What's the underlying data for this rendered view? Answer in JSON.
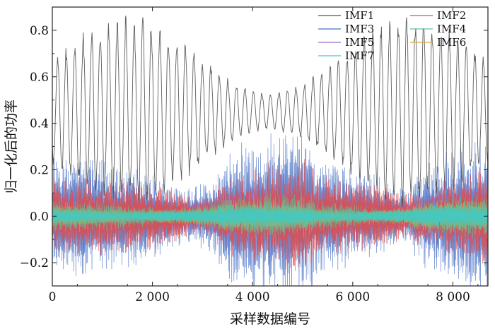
{
  "chart_data": {
    "type": "line",
    "xlabel": "采样数据编号",
    "ylabel": "归一化后的功率",
    "xlim": [
      0,
      8700
    ],
    "ylim": [
      -0.3,
      0.9
    ],
    "x_ticks": [
      0,
      2000,
      4000,
      6000,
      8000
    ],
    "x_tick_labels": [
      "0",
      "2 000",
      "4 000",
      "6 000",
      "8 000"
    ],
    "y_ticks": [
      -0.2,
      0.0,
      0.2,
      0.4,
      0.6,
      0.8
    ],
    "y_tick_labels": [
      "−0.2",
      "0.0",
      "0.2",
      "0.4",
      "0.6",
      "0.8"
    ],
    "grid": false,
    "legend_position": "top-right",
    "series": [
      {
        "name": "IMF1",
        "color": "#555555",
        "amplitude": 0.42,
        "mean": 0.45,
        "period": 170
      },
      {
        "name": "IMF2",
        "color": "#e34a4a",
        "amplitude": 0.15,
        "mean": 0.0,
        "period": 28
      },
      {
        "name": "IMF3",
        "color": "#4a72c8",
        "amplitude": 0.22,
        "mean": 0.0,
        "period": 18
      },
      {
        "name": "IMF4",
        "color": "#5fc39a",
        "amplitude": 0.06,
        "mean": 0.0,
        "period": 10
      },
      {
        "name": "IMF5",
        "color": "#9b6ad0",
        "amplitude": 0.07,
        "mean": 0.0,
        "period": 40
      },
      {
        "name": "IMF6",
        "color": "#d9a43b",
        "amplitude": 0.04,
        "mean": 0.0,
        "period": 60
      },
      {
        "name": "IMF7",
        "color": "#41c9c4",
        "amplitude": 0.03,
        "mean": 0.0,
        "period": 8
      }
    ]
  }
}
